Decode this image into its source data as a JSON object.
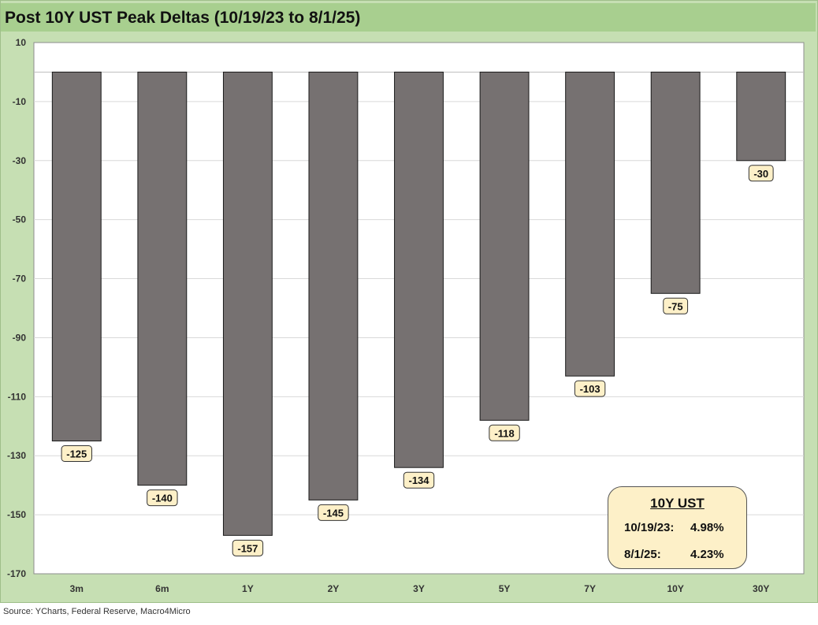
{
  "title": "Post 10Y UST Peak Deltas (10/19/23 to 8/1/25)",
  "source": "Source: YCharts, Federal Reserve, Macro4Micro",
  "info_box": {
    "title": "10Y UST",
    "rows": [
      {
        "date": "10/19/23:",
        "value": "4.98%"
      },
      {
        "date": "8/1/25:",
        "value": "4.23%"
      }
    ]
  },
  "colors": {
    "frame": "#c6dfb3",
    "title_bar": "#a8cf8f",
    "bar": "#767171",
    "label_fill": "#fdf0c8",
    "grid": "#d9d9d9"
  },
  "chart_data": {
    "type": "bar",
    "title": "Post 10Y UST Peak Deltas (10/19/23 to 8/1/25)",
    "categories": [
      "3m",
      "6m",
      "1Y",
      "2Y",
      "3Y",
      "5Y",
      "7Y",
      "10Y",
      "30Y"
    ],
    "values": [
      -125,
      -140,
      -157,
      -145,
      -134,
      -118,
      -103,
      -75,
      -30
    ],
    "data_labels": [
      "-125",
      "-140",
      "-157",
      "-145",
      "-134",
      "-118",
      "-103",
      "-75",
      "-30"
    ],
    "y_ticks": [
      10,
      -10,
      -30,
      -50,
      -70,
      -90,
      -110,
      -130,
      -150,
      -170
    ],
    "ylim": [
      -170,
      10
    ],
    "xlabel": "",
    "ylabel": "",
    "grid": true,
    "legend": "none"
  }
}
